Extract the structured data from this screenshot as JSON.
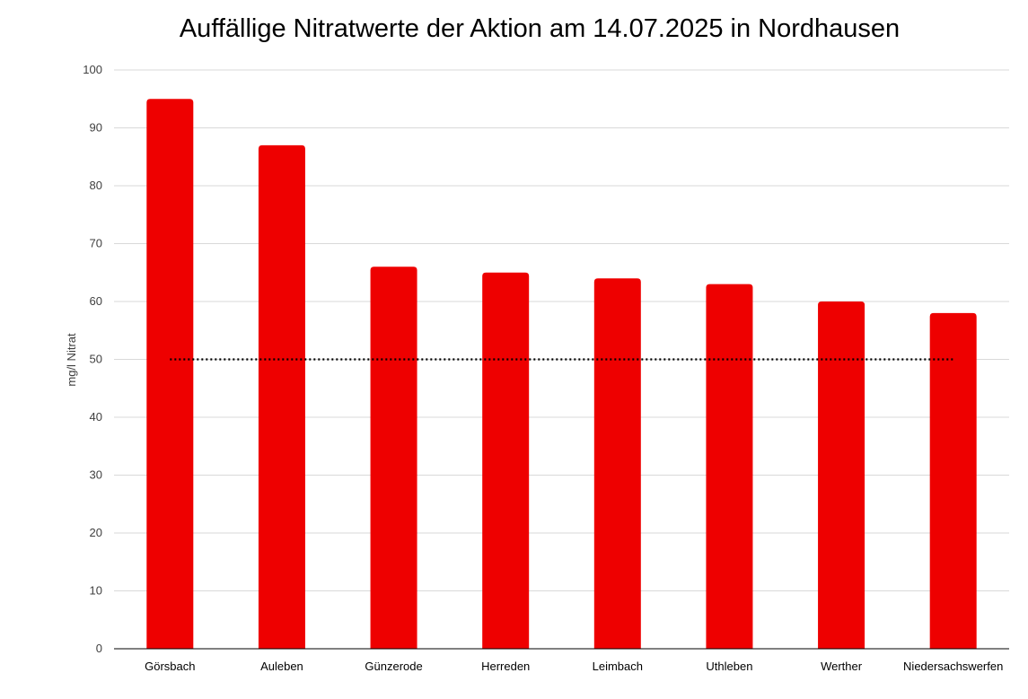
{
  "chart_data": {
    "type": "bar",
    "title": "Auffällige Nitratwerte der Aktion am 14.07.2025 in Nordhausen",
    "ylabel": "mg/l Nitrat",
    "xlabel": "",
    "categories": [
      "Görsbach",
      "Auleben",
      "Günzerode",
      "Herreden",
      "Leimbach",
      "Uthleben",
      "Werther",
      "Niedersachswerfen"
    ],
    "values": [
      95,
      87,
      66,
      65,
      64,
      63,
      60,
      58
    ],
    "ylim": [
      0,
      100
    ],
    "yticks": [
      0,
      10,
      20,
      30,
      40,
      50,
      60,
      70,
      80,
      90,
      100
    ],
    "reference_line": {
      "value": 50,
      "style": "dotted"
    },
    "grid": true,
    "legend": "none",
    "bar_color": "#ee0000",
    "reference_line_color": "#000000"
  }
}
